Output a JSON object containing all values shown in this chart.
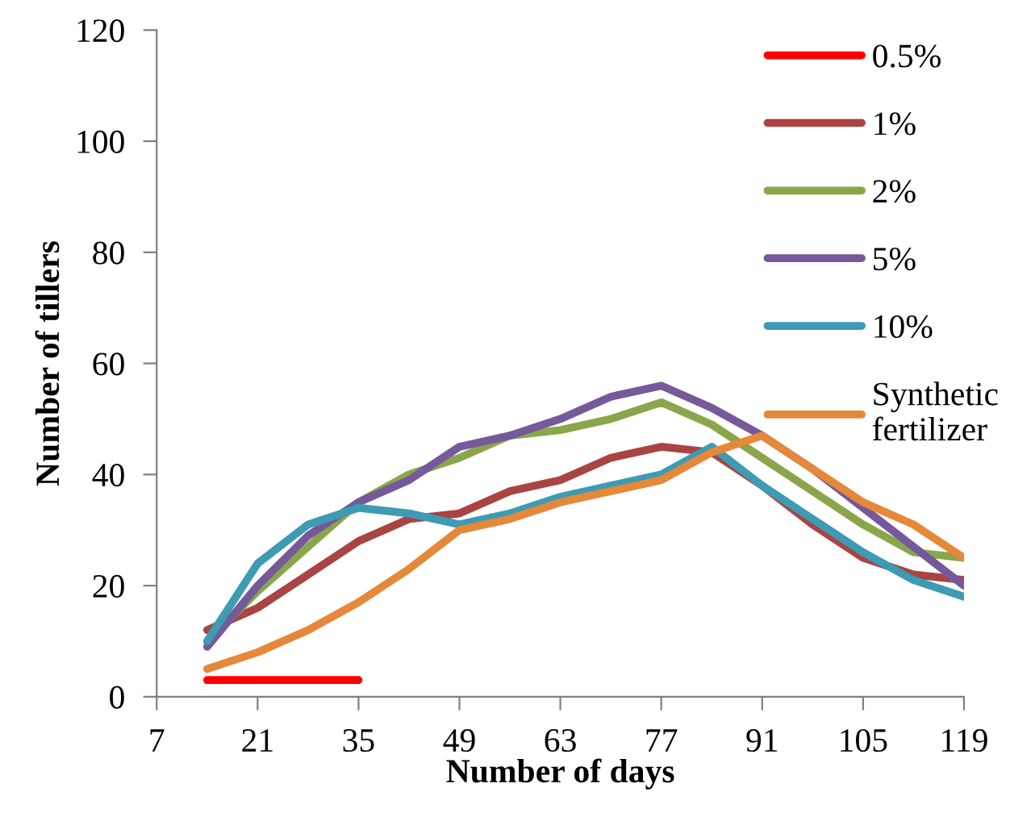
{
  "chart_data": {
    "type": "line",
    "xlabel": "Number of days",
    "ylabel": "Number of tillers",
    "x": [
      14,
      21,
      28,
      35,
      42,
      49,
      56,
      63,
      70,
      77,
      84,
      91,
      98,
      105,
      112,
      119
    ],
    "series": [
      {
        "name": "0.5%",
        "color": "#ff0000",
        "values": [
          3,
          3,
          3,
          3,
          null,
          null,
          null,
          null,
          null,
          null,
          null,
          null,
          null,
          null,
          null,
          null
        ]
      },
      {
        "name": "1%",
        "color": "#a94442",
        "values": [
          12,
          16,
          22,
          28,
          32,
          33,
          37,
          39,
          43,
          45,
          44,
          38,
          31,
          25,
          22,
          21
        ]
      },
      {
        "name": "2%",
        "color": "#8aa64a",
        "values": [
          10,
          19,
          27,
          35,
          40,
          43,
          47,
          48,
          50,
          53,
          49,
          43,
          37,
          31,
          26,
          25
        ]
      },
      {
        "name": "5%",
        "color": "#75599a",
        "values": [
          9,
          20,
          29,
          35,
          39,
          45,
          47,
          50,
          54,
          56,
          52,
          47,
          41,
          34,
          27,
          20
        ]
      },
      {
        "name": "10%",
        "color": "#3d9bb3",
        "values": [
          10,
          24,
          31,
          34,
          33,
          31,
          33,
          36,
          38,
          40,
          45,
          38,
          32,
          26,
          21,
          18
        ]
      },
      {
        "name": "Synthetic\nfertilizer",
        "color": "#e5883a",
        "values": [
          5,
          8,
          12,
          17,
          23,
          30,
          32,
          35,
          37,
          39,
          44,
          47,
          41,
          35,
          31,
          25
        ]
      }
    ],
    "xlim": [
      7,
      119
    ],
    "xticks": [
      7,
      21,
      35,
      49,
      63,
      77,
      91,
      105,
      119
    ],
    "ylim": [
      0,
      120
    ],
    "yticks": [
      0,
      20,
      40,
      60,
      80,
      100,
      120
    ],
    "grid": false,
    "legend": "top right",
    "marker": "none",
    "line_style": "solid"
  }
}
